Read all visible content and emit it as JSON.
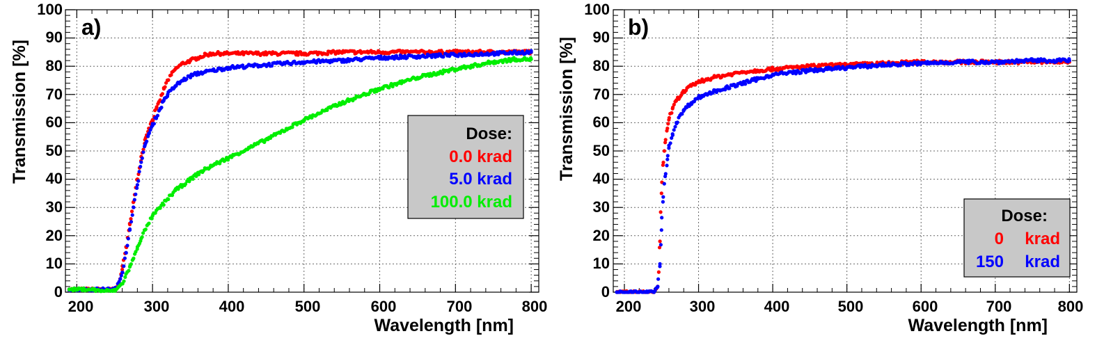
{
  "chart_data": [
    {
      "type": "scatter",
      "panel_label": "a)",
      "xlabel": "Wavelength [nm]",
      "ylabel": "Transmission [%]",
      "xlim": [
        185,
        810
      ],
      "ylim": [
        0,
        100
      ],
      "x_ticks": [
        "200",
        "300",
        "400",
        "500",
        "600",
        "700",
        "800"
      ],
      "y_ticks": [
        "0",
        "10",
        "20",
        "30",
        "40",
        "50",
        "60",
        "70",
        "80",
        "90",
        "100"
      ],
      "grid": true,
      "legend": {
        "position": "center-right",
        "title": "Dose:",
        "entries": [
          {
            "label": "0.0 krad",
            "color": "#ff0000"
          },
          {
            "label": "5.0 krad",
            "color": "#0000ff"
          },
          {
            "label": "100.0 krad",
            "color": "#00ee00"
          }
        ]
      },
      "series": [
        {
          "name": "0.0 krad",
          "color": "#ff0000",
          "x": [
            190,
            200,
            210,
            220,
            230,
            240,
            250,
            255,
            260,
            265,
            270,
            275,
            280,
            285,
            290,
            295,
            300,
            305,
            310,
            315,
            320,
            330,
            340,
            350,
            360,
            370,
            380,
            390,
            400,
            450,
            500,
            550,
            600,
            650,
            700,
            750,
            800
          ],
          "y": [
            1,
            1,
            1,
            1,
            1,
            1,
            1,
            3,
            8,
            16,
            24,
            32,
            40,
            48,
            54,
            58,
            61,
            65,
            68,
            72,
            75,
            79,
            81,
            82,
            83,
            84,
            84.5,
            84.5,
            84.5,
            84.5,
            84.5,
            85,
            85,
            85,
            85,
            85,
            85
          ]
        },
        {
          "name": "5.0 krad",
          "color": "#0000ff",
          "x": [
            190,
            200,
            210,
            220,
            230,
            240,
            250,
            255,
            260,
            265,
            270,
            275,
            280,
            285,
            290,
            295,
            300,
            305,
            310,
            315,
            320,
            330,
            340,
            350,
            360,
            370,
            380,
            390,
            400,
            450,
            500,
            550,
            600,
            650,
            700,
            750,
            800
          ],
          "y": [
            1,
            1,
            1,
            1,
            1,
            1,
            1,
            3,
            7,
            14,
            22,
            30,
            38,
            46,
            52,
            56,
            59,
            62,
            65,
            68,
            70,
            73,
            75,
            76.5,
            77.5,
            78,
            78.5,
            79,
            79.5,
            80.5,
            81.5,
            82,
            83,
            83.5,
            84,
            84.5,
            85
          ]
        },
        {
          "name": "100.0 krad",
          "color": "#00ee00",
          "x": [
            190,
            200,
            210,
            220,
            230,
            240,
            250,
            260,
            270,
            275,
            280,
            285,
            290,
            300,
            310,
            320,
            330,
            340,
            350,
            360,
            380,
            400,
            450,
            500,
            550,
            600,
            650,
            700,
            750,
            780,
            800
          ],
          "y": [
            1,
            1,
            1,
            1,
            0.5,
            0.5,
            0.5,
            3,
            9,
            12,
            16,
            19,
            22,
            27,
            30,
            33,
            36,
            38,
            40,
            42,
            45,
            47.5,
            54,
            61,
            67,
            72,
            76,
            79,
            81.5,
            82.5,
            82.5
          ]
        }
      ]
    },
    {
      "type": "scatter",
      "panel_label": "b)",
      "xlabel": "Wavelength [nm]",
      "ylabel": "Transmission [%]",
      "xlim": [
        185,
        810
      ],
      "ylim": [
        0,
        100
      ],
      "x_ticks": [
        "200",
        "300",
        "400",
        "500",
        "600",
        "700",
        "800"
      ],
      "y_ticks": [
        "0",
        "10",
        "20",
        "30",
        "40",
        "50",
        "60",
        "70",
        "80",
        "90",
        "100"
      ],
      "grid": true,
      "legend": {
        "position": "bottom-right",
        "title": "Dose:",
        "entries": [
          {
            "value": "0",
            "unit": "krad",
            "color": "#ff0000"
          },
          {
            "value": "150",
            "unit": "krad",
            "color": "#0000ff"
          }
        ]
      },
      "series": [
        {
          "name": "0 krad",
          "color": "#ff0000",
          "x": [
            190,
            200,
            210,
            220,
            230,
            240,
            245,
            248,
            250,
            252,
            255,
            258,
            260,
            265,
            270,
            280,
            290,
            300,
            320,
            340,
            360,
            380,
            400,
            450,
            500,
            550,
            600,
            650,
            700,
            750,
            800
          ],
          "y": [
            0,
            0,
            0,
            0,
            0,
            0,
            2,
            18,
            35,
            45,
            53,
            58,
            61,
            65,
            68,
            71,
            73,
            74.5,
            76,
            77,
            78,
            78.5,
            79,
            80,
            80.5,
            81,
            81.5,
            81.5,
            81.5,
            81.5,
            81.5
          ]
        },
        {
          "name": "150 krad",
          "color": "#0000ff",
          "x": [
            190,
            200,
            210,
            220,
            230,
            240,
            245,
            248,
            250,
            252,
            255,
            258,
            260,
            265,
            270,
            280,
            290,
            300,
            320,
            340,
            360,
            380,
            400,
            450,
            500,
            550,
            600,
            650,
            700,
            750,
            800
          ],
          "y": [
            0,
            0,
            0,
            0,
            0,
            0,
            2,
            10,
            22,
            32,
            41,
            47,
            51,
            56,
            60,
            64.5,
            67,
            69,
            71,
            72.5,
            74,
            75.5,
            77,
            78.5,
            79.5,
            80.5,
            81,
            81.5,
            81.5,
            82,
            82
          ]
        }
      ]
    }
  ]
}
